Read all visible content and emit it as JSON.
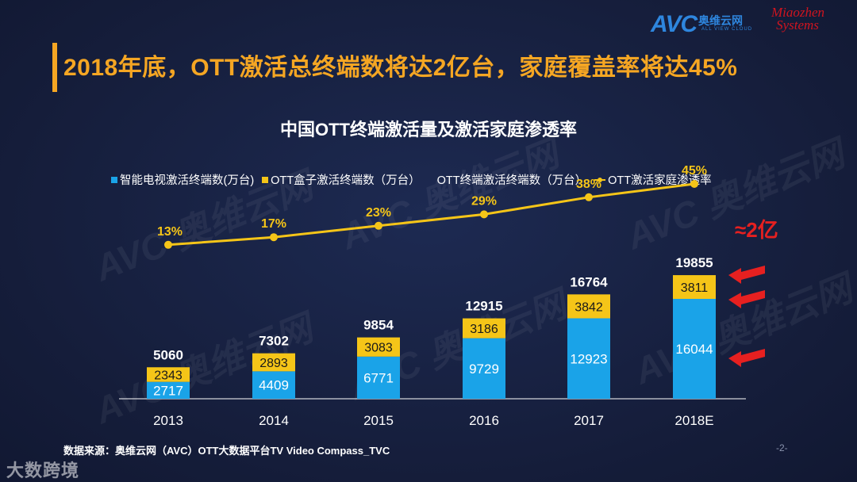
{
  "slide": {
    "title": "2018年底，OTT激活总终端数将达2亿台，家庭覆盖率将达45%",
    "source": "数据来源：奥维云网（AVC）OTT大数据平台TV Video Compass_TVC",
    "page_number": "-2-",
    "annotation": "≈2亿",
    "watermark": "大数跨境",
    "background_watermark": "AVC 奥维云网"
  },
  "logos": {
    "avc": "AVC",
    "avc_cn": "奥维云网",
    "avc_en": "ALL VIEW CLOUD",
    "miaozhen": "Miaozhen Systems"
  },
  "colors": {
    "accent": "#f5a623",
    "smart_tv": "#1aa3e8",
    "ott_box": "#f5c518",
    "line": "#f5c518",
    "arrow": "#e62020",
    "background": "#16203f"
  },
  "chart_data": {
    "type": "bar",
    "stacked": true,
    "title": "中国OTT终端激活量及激活家庭渗透率",
    "categories": [
      "2013",
      "2014",
      "2015",
      "2016",
      "2017",
      "2018E"
    ],
    "series": [
      {
        "name": "智能电视激活终端数(万台)",
        "values": [
          2717,
          4409,
          6771,
          9729,
          12923,
          16044
        ]
      },
      {
        "name": "OTT盒子激活终端数（万台）",
        "values": [
          2343,
          2893,
          3083,
          3186,
          3842,
          3811
        ]
      }
    ],
    "totals": {
      "name": "OTT终端激活终端数（万台）",
      "values": [
        5060,
        7302,
        9854,
        12915,
        16764,
        19855
      ]
    },
    "line": {
      "name": "OTT激活家庭渗透率",
      "values": [
        13,
        17,
        23,
        29,
        38,
        45
      ],
      "labels": [
        "13%",
        "17%",
        "23%",
        "29%",
        "38%",
        "45%"
      ]
    },
    "legend": [
      "智能电视激活终端数(万台)",
      "OTT盒子激活终端数（万台）",
      "OTT终端激活终端数（万台）",
      "OTT激活家庭渗透率"
    ],
    "legend_position": "top",
    "ylim": [
      0,
      20000
    ],
    "grid": false
  }
}
